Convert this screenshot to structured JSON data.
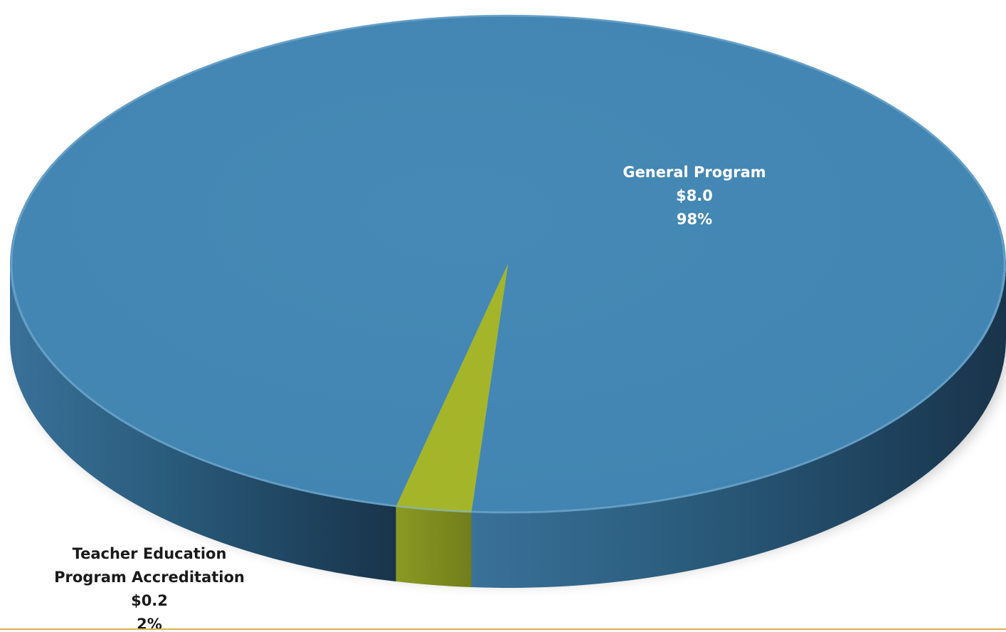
{
  "chart_data": {
    "type": "pie",
    "style": "3d",
    "title": "",
    "slices": [
      {
        "name_lines": [
          "General Program"
        ],
        "value_label": "$8.0",
        "percent_label": "98%",
        "value": 8.0,
        "percent": 98,
        "color": "#4287b5",
        "label_color": "#ffffff"
      },
      {
        "name_lines": [
          "Teacher Education",
          "Program Accreditation"
        ],
        "value_label": "$0.2",
        "percent_label": "2%",
        "value": 0.2,
        "percent": 2,
        "color": "#a4b52a",
        "label_color": "#1a1a1a"
      }
    ]
  },
  "colors": {
    "accent_rule": "#d4b14a"
  }
}
